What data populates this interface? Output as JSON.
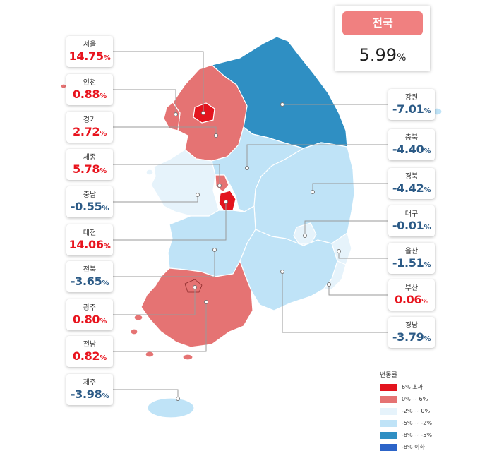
{
  "national": {
    "label": "전국",
    "value": "5.99",
    "unit": "%"
  },
  "regions": [
    {
      "id": "seoul",
      "name": "서울",
      "value": "14.75",
      "unit": "%",
      "direction": "up"
    },
    {
      "id": "incheon",
      "name": "인천",
      "value": "0.88",
      "unit": "%",
      "direction": "up"
    },
    {
      "id": "gyeonggi",
      "name": "경기",
      "value": "2.72",
      "unit": "%",
      "direction": "up"
    },
    {
      "id": "sejong",
      "name": "세종",
      "value": "5.78",
      "unit": "%",
      "direction": "up"
    },
    {
      "id": "chungnam",
      "name": "충남",
      "value": "-0.55",
      "unit": "%",
      "direction": "down"
    },
    {
      "id": "daejeon",
      "name": "대전",
      "value": "14.06",
      "unit": "%",
      "direction": "up"
    },
    {
      "id": "jeonbuk",
      "name": "전북",
      "value": "-3.65",
      "unit": "%",
      "direction": "down"
    },
    {
      "id": "gwangju",
      "name": "광주",
      "value": "0.80",
      "unit": "%",
      "direction": "up"
    },
    {
      "id": "jeonnam",
      "name": "전남",
      "value": "0.82",
      "unit": "%",
      "direction": "up"
    },
    {
      "id": "jeju",
      "name": "제주",
      "value": "-3.98",
      "unit": "%",
      "direction": "down"
    },
    {
      "id": "gangwon",
      "name": "강원",
      "value": "-7.01",
      "unit": "%",
      "direction": "down"
    },
    {
      "id": "chungbuk",
      "name": "충북",
      "value": "-4.40",
      "unit": "%",
      "direction": "down"
    },
    {
      "id": "gyeongbuk",
      "name": "경북",
      "value": "-4.42",
      "unit": "%",
      "direction": "down"
    },
    {
      "id": "daegu",
      "name": "대구",
      "value": "-0.01",
      "unit": "%",
      "direction": "down"
    },
    {
      "id": "ulsan",
      "name": "울산",
      "value": "-1.51",
      "unit": "%",
      "direction": "down"
    },
    {
      "id": "busan",
      "name": "부산",
      "value": "0.06",
      "unit": "%",
      "direction": "up"
    },
    {
      "id": "gyeongnam",
      "name": "경남",
      "value": "-3.79",
      "unit": "%",
      "direction": "down"
    }
  ],
  "legend": {
    "title": "변동률",
    "items": [
      {
        "label": "6% 초과",
        "color": "#e3141e"
      },
      {
        "label": "0% ~ 6%",
        "color": "#e57373"
      },
      {
        "label": "-2% ~ 0%",
        "color": "#e6f3fb"
      },
      {
        "label": "-5% ~ -2%",
        "color": "#bfe3f7"
      },
      {
        "label": "-8% ~ -5%",
        "color": "#2f8fc3"
      },
      {
        "label": "-8% 이하",
        "color": "#2c64c8"
      }
    ]
  },
  "colors": {
    "increase_text": "#e8141e",
    "decrease_text": "#2b5a86",
    "national_badge": "#f08080"
  }
}
